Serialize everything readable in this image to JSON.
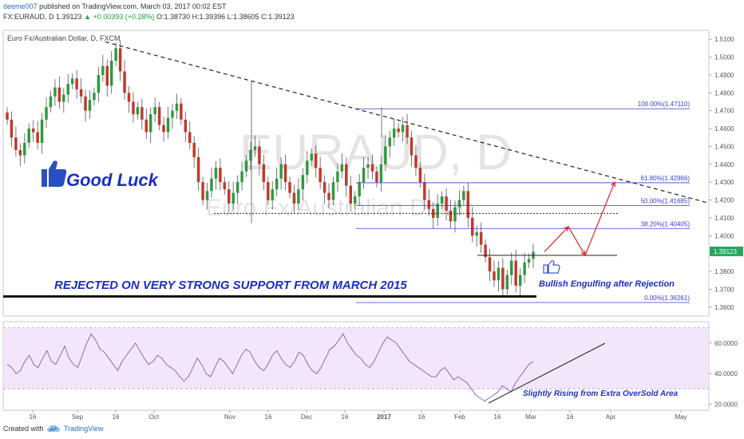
{
  "header": {
    "user": "deeme007",
    "published_text": "published on TradingView.com, March 03, 2017 00:02 EST",
    "symbol_info": "FX:EURAUD, D 1.39123",
    "change": "▲ +0.00393 (+0.28%)",
    "ohlc": "O:1.38730 H:1.39396 L:1.38605 C:1.39123"
  },
  "chart_data": {
    "type": "candlestick",
    "title": "Euro Fx/Australian Dollar, D, FXCM",
    "watermark": {
      "big": "EURAUD, D",
      "sub": "Euro Fx/Australian Dollar"
    },
    "y_ticks": [
      "1.5100",
      "1.5000",
      "1.4900",
      "1.4800",
      "1.4700",
      "1.4600",
      "1.4500",
      "1.4400",
      "1.4300",
      "1.4200",
      "1.4100",
      "1.4000",
      "1.3800",
      "1.3700",
      "1.3600"
    ],
    "ylim": [
      1.355,
      1.515
    ],
    "last_price_label": "1.39123",
    "last_price": 1.39123,
    "x_ticks": [
      "16",
      "Sep",
      "16",
      "Oct",
      "Nov",
      "16",
      "Dec",
      "16",
      "2017",
      "16",
      "Feb",
      "16",
      "Mar",
      "16",
      "Apr",
      "May"
    ],
    "closes": [
      1.465,
      1.455,
      1.448,
      1.445,
      1.452,
      1.46,
      1.458,
      1.452,
      1.465,
      1.472,
      1.478,
      1.483,
      1.475,
      1.479,
      1.485,
      1.488,
      1.482,
      1.478,
      1.47,
      1.476,
      1.48,
      1.49,
      1.495,
      1.484,
      1.498,
      1.505,
      1.492,
      1.48,
      1.475,
      1.468,
      1.472,
      1.465,
      1.458,
      1.468,
      1.472,
      1.462,
      1.458,
      1.466,
      1.47,
      1.474,
      1.465,
      1.458,
      1.452,
      1.444,
      1.43,
      1.42,
      1.425,
      1.432,
      1.438,
      1.43,
      1.426,
      1.418,
      1.424,
      1.43,
      1.436,
      1.442,
      1.448,
      1.45,
      1.44,
      1.43,
      1.42,
      1.426,
      1.432,
      1.44,
      1.43,
      1.424,
      1.418,
      1.426,
      1.434,
      1.442,
      1.446,
      1.438,
      1.43,
      1.424,
      1.42,
      1.43,
      1.436,
      1.44,
      1.428,
      1.418,
      1.422,
      1.43,
      1.438,
      1.44,
      1.436,
      1.43,
      1.44,
      1.45,
      1.455,
      1.46,
      1.458,
      1.462,
      1.455,
      1.445,
      1.438,
      1.43,
      1.42,
      1.415,
      1.41,
      1.418,
      1.422,
      1.414,
      1.408,
      1.416,
      1.42,
      1.425,
      1.41,
      1.4,
      1.402,
      1.395,
      1.388,
      1.38,
      1.375,
      1.382,
      1.37,
      1.378,
      1.386,
      1.372,
      1.378,
      1.385,
      1.387,
      1.391
    ],
    "trendline_label": "dashed descending resistance",
    "horizontal_lines": [
      {
        "label": "support",
        "value": 1.366
      },
      {
        "label": "dotted",
        "value": 1.4125
      },
      {
        "label": "resistance",
        "value": 1.389
      }
    ],
    "fib_levels": [
      {
        "label": "100.00%(1.47110)",
        "value": 1.4711
      },
      {
        "label": "61.80%(1.42966)",
        "value": 1.42966
      },
      {
        "label": "50.00%(1.41685)",
        "value": 1.41685
      },
      {
        "label": "38.20%(1.40405)",
        "value": 1.40405
      },
      {
        "label": "0.00%(1.36261)",
        "value": 1.36261
      }
    ],
    "projection_path": [
      1.391,
      1.405,
      1.389,
      1.43
    ],
    "annotations": {
      "good_luck": "Good Luck",
      "rejected": "REJECTED ON VERY STRONG SUPPORT FROM MARCH 2015",
      "engulfing": "Bullish Engulfing after Rejection",
      "rising": "Slightly Rising from Extra OverSold Area"
    },
    "rsi": {
      "ylim": [
        16,
        74
      ],
      "y_ticks": [
        "60.0000",
        "40.0000",
        "20.0000"
      ],
      "band": [
        30,
        70
      ],
      "values": [
        46,
        44,
        40,
        42,
        48,
        52,
        46,
        44,
        50,
        55,
        48,
        46,
        52,
        58,
        50,
        46,
        44,
        52,
        60,
        66,
        62,
        56,
        54,
        50,
        46,
        42,
        48,
        52,
        56,
        60,
        55,
        50,
        46,
        48,
        52,
        50,
        46,
        44,
        42,
        38,
        35,
        38,
        44,
        50,
        46,
        40,
        38,
        44,
        50,
        48,
        44,
        40,
        46,
        52,
        56,
        54,
        48,
        44,
        42,
        46,
        52,
        55,
        50,
        46,
        44,
        48,
        54,
        52,
        46,
        42,
        40,
        44,
        50,
        56,
        58,
        62,
        66,
        60,
        56,
        52,
        50,
        46,
        44,
        48,
        54,
        60,
        64,
        62,
        60,
        56,
        52,
        48,
        46,
        44,
        42,
        40,
        38,
        38,
        42,
        44,
        40,
        36,
        38,
        36,
        34,
        30,
        26,
        24,
        22,
        24,
        26,
        28,
        32,
        30,
        28,
        34,
        38,
        42,
        46,
        48
      ]
    }
  },
  "footer": {
    "created": "Created with",
    "brand": "TradingView"
  }
}
